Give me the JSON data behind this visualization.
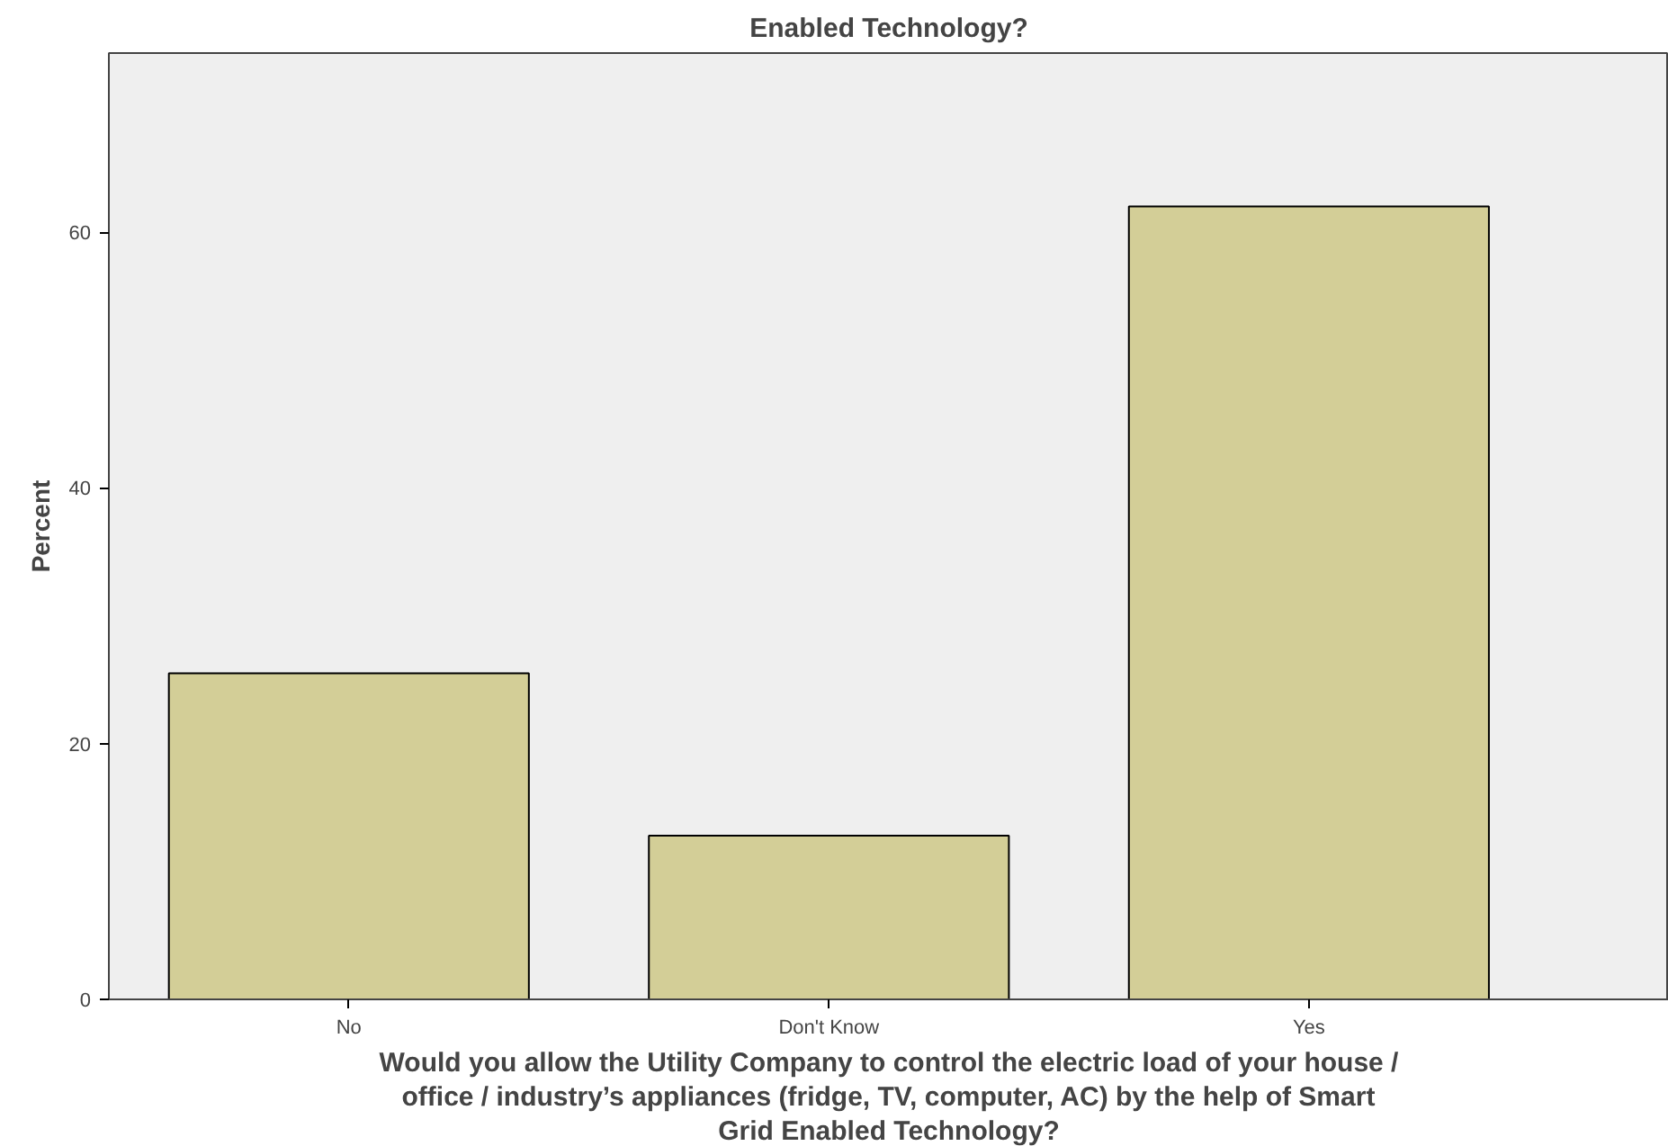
{
  "chart_data": {
    "type": "bar",
    "title": "Enabled Technology?",
    "categories": [
      "No",
      "Don't Know",
      "Yes"
    ],
    "values": [
      25.5,
      12.8,
      62.0
    ],
    "color": "#d3ce97",
    "ylim": [
      0,
      74
    ],
    "yticks": [
      0,
      20,
      40,
      60
    ],
    "ylabel": "Percent",
    "xlabel": "Would you allow the Utility Company to control the electric load of your house / office / industry’s appliances (fridge, TV, computer, AC) by the help of Smart Grid Enabled Technology?",
    "grid": false
  }
}
